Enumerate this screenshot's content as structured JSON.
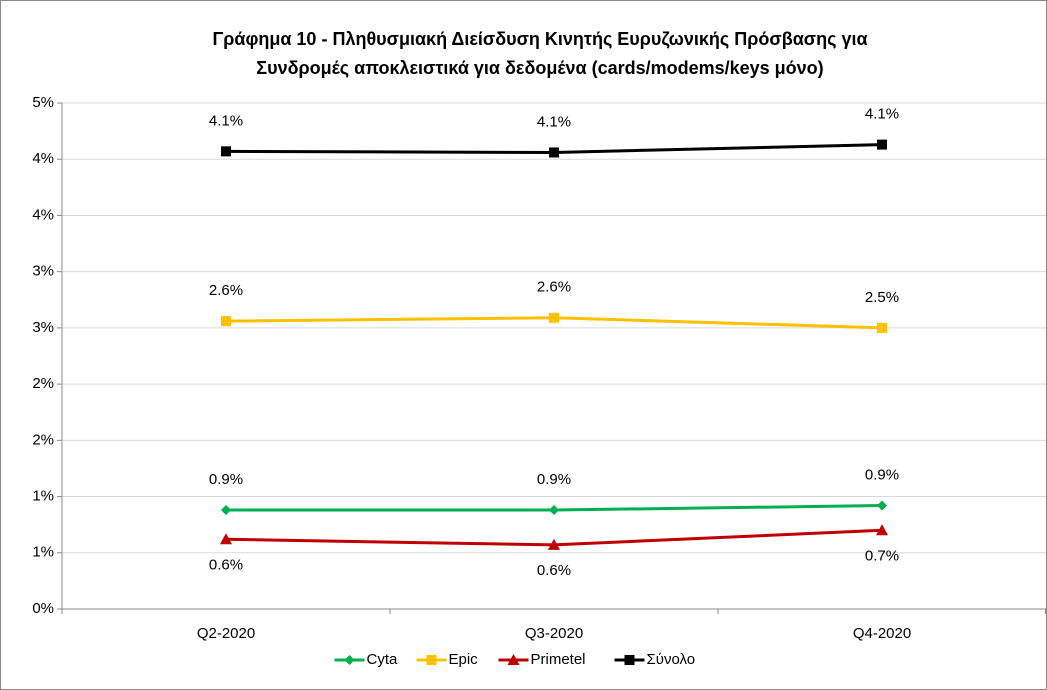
{
  "chart_data": {
    "type": "line",
    "title": [
      "Γράφημα 10 - Πληθυσμιακή Διείσδυση Κινητής Ευρυζωνικής Πρόσβασης για",
      "Συνδρομές αποκλειστικά για δεδομένα (cards/modems/keys μόνο)"
    ],
    "categories": [
      "Q2-2020",
      "Q3-2020",
      "Q4-2020"
    ],
    "series": [
      {
        "name": "Cyta",
        "color": "#00b050",
        "marker": "diamond",
        "label_position": "above",
        "values": [
          0.88,
          0.88,
          0.92
        ],
        "value_labels": [
          "0.9%",
          "0.9%",
          "0.9%"
        ]
      },
      {
        "name": "Epic",
        "color": "#ffc000",
        "marker": "square",
        "label_position": "above",
        "values": [
          2.56,
          2.59,
          2.5
        ],
        "value_labels": [
          "2.6%",
          "2.6%",
          "2.5%"
        ]
      },
      {
        "name": "Primetel",
        "color": "#c00000",
        "marker": "triangle",
        "label_position": "below",
        "values": [
          0.62,
          0.57,
          0.7
        ],
        "value_labels": [
          "0.6%",
          "0.6%",
          "0.7%"
        ]
      },
      {
        "name": "Σύνολο",
        "color": "#000000",
        "marker": "square",
        "label_position": "above",
        "values": [
          4.07,
          4.06,
          4.13
        ],
        "value_labels": [
          "4.1%",
          "4.1%",
          "4.1%"
        ]
      }
    ],
    "ylim": [
      0,
      4.5
    ],
    "yticks": [
      {
        "value": 0,
        "label": "0%"
      },
      {
        "value": 0.5,
        "label": "1%"
      },
      {
        "value": 1,
        "label": "1%"
      },
      {
        "value": 1.5,
        "label": "2%"
      },
      {
        "value": 2,
        "label": "2%"
      },
      {
        "value": 2.5,
        "label": "3%"
      },
      {
        "value": 3,
        "label": "3%"
      },
      {
        "value": 3.5,
        "label": "4%"
      },
      {
        "value": 4,
        "label": "4%"
      },
      {
        "value": 4.5,
        "label": "5%"
      }
    ],
    "grid": true,
    "legend": "bottom"
  }
}
